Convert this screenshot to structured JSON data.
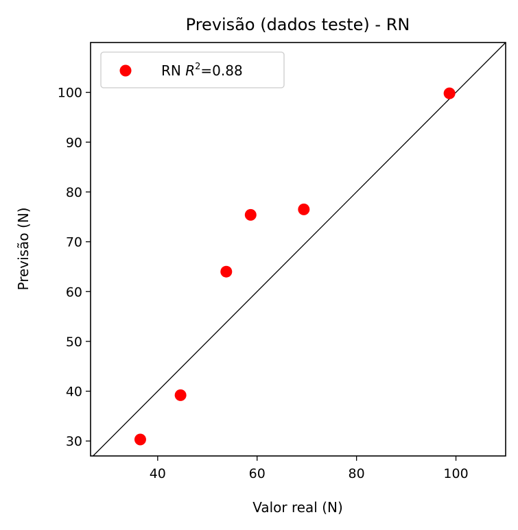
{
  "chart_data": {
    "type": "scatter",
    "title": "Previsão (dados teste) - RN",
    "xlabel": "Valor real (N)",
    "ylabel": "Previsão (N)",
    "xlim": [
      26.5,
      110
    ],
    "ylim": [
      27,
      110
    ],
    "xticks": [
      40,
      60,
      80,
      100
    ],
    "yticks": [
      30,
      40,
      50,
      60,
      70,
      80,
      90,
      100
    ],
    "grid": false,
    "legend_position": "top-left",
    "reference_line": "y = x",
    "series": [
      {
        "name": "RN R²=0.88",
        "color": "#ff0000",
        "points": [
          {
            "x": 36.5,
            "y": 30.3
          },
          {
            "x": 44.6,
            "y": 39.2
          },
          {
            "x": 53.8,
            "y": 64.0
          },
          {
            "x": 58.7,
            "y": 75.4
          },
          {
            "x": 69.4,
            "y": 76.5
          },
          {
            "x": 98.7,
            "y": 99.8
          }
        ]
      }
    ]
  },
  "legend": {
    "label_prefix": "RN ",
    "label_var": "R",
    "label_sup": "2",
    "label_suffix": "=0.88"
  }
}
